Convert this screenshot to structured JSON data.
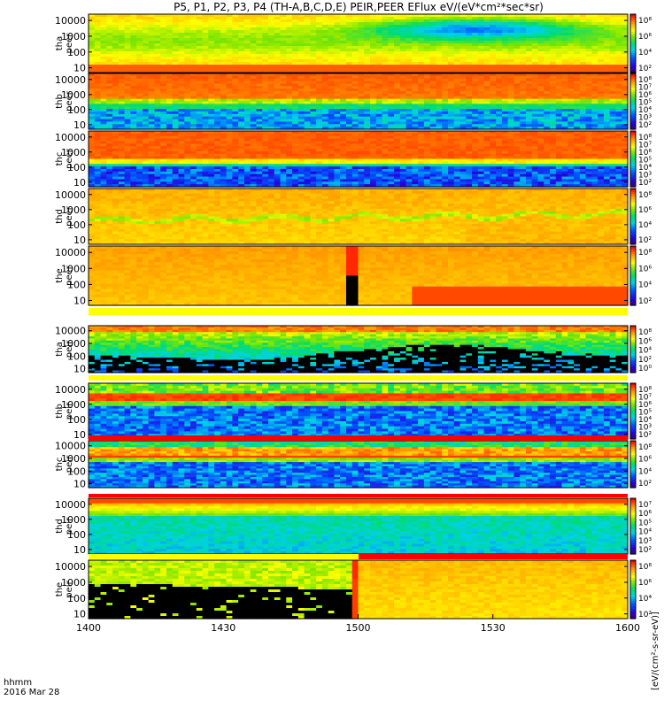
{
  "title": "P5, P1, P2, P3, P4 (TH-A,B,C,D,E) PEIR,PEER EFlux eV/(eV*cm²*sec*sr)",
  "time_axis": {
    "label_line1": "hhmm",
    "label_line2": "2016 Mar 28"
  },
  "colorbar_label": "[eV/(cm²-s-sr-eV)]",
  "chart_data": {
    "type": "heatmap",
    "x": {
      "ticks": [
        "1400",
        "1430",
        "1500",
        "1530",
        "1600"
      ],
      "range": [
        "14:00",
        "16:00"
      ]
    },
    "y": {
      "scale": "log",
      "ticks": [
        "10",
        "100",
        "1000",
        "10000"
      ],
      "range": [
        5,
        25000
      ]
    },
    "panels": [
      {
        "probe": "tha",
        "species": "peer",
        "cbar_ticks": [
          "10⁸",
          "10⁶",
          "10⁴",
          "10²"
        ],
        "pattern": "tha_e"
      },
      {
        "probe": "thb",
        "species": "peer",
        "cbar_ticks": [
          "10⁸",
          "10⁷",
          "10⁶",
          "10⁵",
          "10⁴",
          "10³",
          "10²"
        ],
        "pattern": "thb_e"
      },
      {
        "probe": "thc",
        "species": "peer",
        "cbar_ticks": [
          "10⁸",
          "10⁷",
          "10⁶",
          "10⁵",
          "10⁴",
          "10³",
          "10²"
        ],
        "pattern": "thc_e"
      },
      {
        "probe": "thd",
        "species": "peer",
        "cbar_ticks": [
          "10⁸",
          "10⁶",
          "10⁴",
          "10²"
        ],
        "pattern": "thd_e"
      },
      {
        "probe": "the",
        "species": "peer",
        "cbar_ticks": [
          "10⁸",
          "10⁶",
          "10⁴",
          "10²"
        ],
        "pattern": "the_e"
      },
      {
        "probe": "tha",
        "species": "peir",
        "cbar_ticks": [
          "10⁸",
          "10⁶",
          "10⁴",
          "10²",
          "10⁰"
        ],
        "pattern": "tha_i"
      },
      {
        "probe": "thb",
        "species": "peir",
        "cbar_ticks": [
          "10⁸",
          "10⁷",
          "10⁶",
          "10⁵",
          "10⁴",
          "10³",
          "10²"
        ],
        "pattern": "thb_i"
      },
      {
        "probe": "thc",
        "species": "peir",
        "cbar_ticks": [
          "10⁸",
          "10⁶",
          "10⁴",
          "10²"
        ],
        "pattern": "thc_i"
      },
      {
        "probe": "thd",
        "species": "peir",
        "cbar_ticks": [
          "10⁷",
          "10⁶",
          "10⁵",
          "10⁴",
          "10³",
          "10²"
        ],
        "pattern": "thd_i"
      },
      {
        "probe": "the",
        "species": "peir",
        "cbar_ticks": [
          "10⁸",
          "10⁶",
          "10⁴",
          "10²"
        ],
        "pattern": "the_i"
      }
    ]
  }
}
